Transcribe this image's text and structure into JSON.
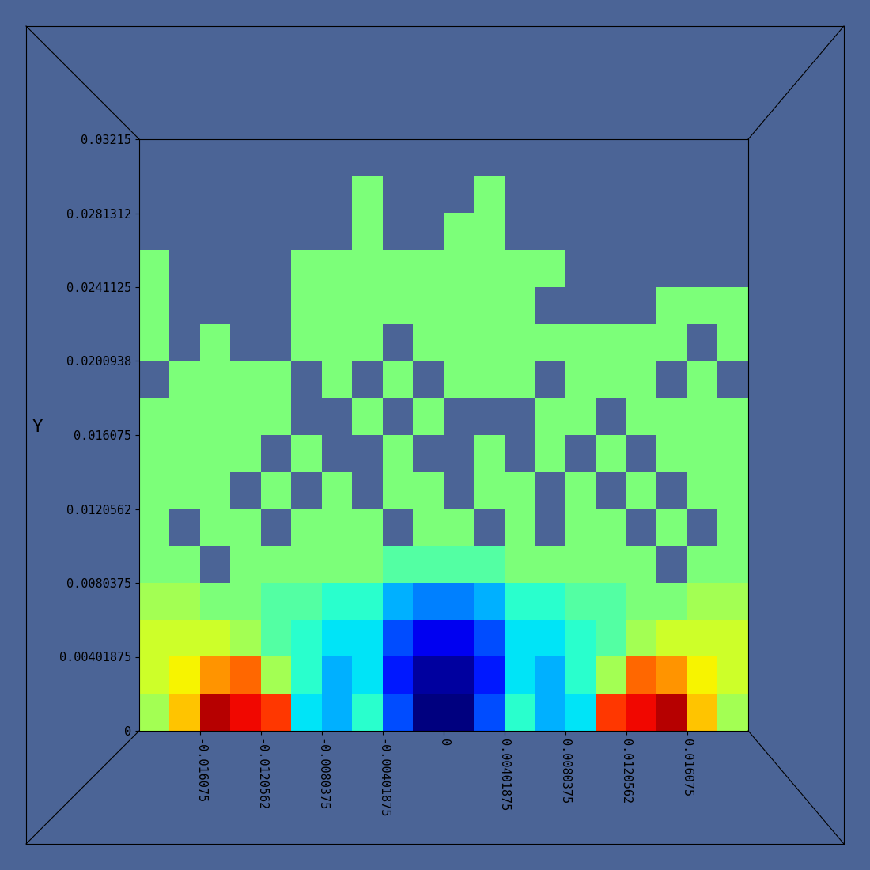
{
  "chart_data": {
    "type": "heatmap",
    "y_label": "Y",
    "xlim": [
      -0.0200938,
      0.0200938
    ],
    "ylim": [
      0,
      0.03215
    ],
    "xticks": [
      -0.016075,
      -0.0120562,
      -0.0080375,
      -0.00401875,
      0,
      0.00401875,
      0.0080375,
      0.0120562,
      0.016075
    ],
    "yticks": [
      0,
      0.00401875,
      0.0080375,
      0.0120562,
      0.016075,
      0.0200938,
      0.0241125,
      0.0281312,
      0.03215
    ],
    "color_range": [
      0,
      1
    ],
    "cells": [
      [
        null,
        null,
        null,
        null,
        null,
        null,
        null,
        null,
        null,
        null,
        null,
        null,
        null,
        null,
        null,
        null,
        null,
        null,
        null,
        null
      ],
      [
        null,
        null,
        null,
        null,
        null,
        null,
        null,
        0.5,
        null,
        null,
        null,
        0.5,
        null,
        null,
        null,
        null,
        null,
        null,
        null,
        null
      ],
      [
        null,
        null,
        null,
        null,
        null,
        null,
        null,
        0.5,
        null,
        null,
        0.5,
        0.5,
        null,
        null,
        null,
        null,
        null,
        null,
        null,
        null
      ],
      [
        0.5,
        null,
        null,
        null,
        null,
        0.5,
        0.5,
        0.5,
        0.5,
        0.5,
        0.5,
        0.5,
        0.5,
        0.5,
        null,
        null,
        null,
        null,
        null,
        null
      ],
      [
        0.5,
        null,
        null,
        null,
        null,
        0.5,
        0.5,
        0.5,
        0.5,
        0.5,
        0.5,
        0.5,
        0.5,
        null,
        null,
        null,
        null,
        0.5,
        0.5,
        0.5
      ],
      [
        0.5,
        null,
        0.5,
        null,
        null,
        0.5,
        0.5,
        0.5,
        null,
        0.5,
        0.5,
        0.5,
        0.5,
        0.5,
        0.5,
        0.5,
        0.5,
        0.5,
        null,
        0.5
      ],
      [
        null,
        0.5,
        0.5,
        0.5,
        0.5,
        null,
        0.5,
        null,
        0.5,
        null,
        0.5,
        0.5,
        0.5,
        null,
        0.5,
        0.5,
        0.5,
        null,
        0.5,
        null
      ],
      [
        0.5,
        0.5,
        0.5,
        0.5,
        0.5,
        null,
        null,
        0.5,
        null,
        0.5,
        null,
        null,
        null,
        0.5,
        0.5,
        null,
        0.5,
        0.5,
        0.5,
        0.5
      ],
      [
        0.5,
        0.5,
        0.5,
        0.5,
        null,
        0.5,
        null,
        null,
        0.5,
        null,
        null,
        0.5,
        null,
        0.5,
        null,
        0.5,
        null,
        0.5,
        0.5,
        0.5
      ],
      [
        0.5,
        0.5,
        0.5,
        null,
        0.5,
        null,
        0.5,
        null,
        0.5,
        0.5,
        null,
        0.5,
        0.5,
        null,
        0.5,
        null,
        0.5,
        null,
        0.5,
        0.5
      ],
      [
        0.5,
        null,
        0.5,
        0.5,
        null,
        0.5,
        0.5,
        0.5,
        null,
        0.5,
        0.5,
        null,
        0.5,
        null,
        0.5,
        0.5,
        null,
        0.5,
        null,
        0.5
      ],
      [
        0.5,
        0.5,
        null,
        0.5,
        0.5,
        0.5,
        0.5,
        0.5,
        0.45,
        0.45,
        0.45,
        0.45,
        0.5,
        0.5,
        0.5,
        0.5,
        0.5,
        null,
        0.5,
        0.5
      ],
      [
        0.55,
        0.55,
        0.5,
        0.5,
        0.45,
        0.45,
        0.4,
        0.4,
        0.3,
        0.25,
        0.25,
        0.3,
        0.4,
        0.4,
        0.45,
        0.45,
        0.5,
        0.5,
        0.55,
        0.55
      ],
      [
        0.6,
        0.6,
        0.6,
        0.55,
        0.45,
        0.4,
        0.35,
        0.35,
        0.2,
        0.1,
        0.1,
        0.2,
        0.35,
        0.35,
        0.4,
        0.45,
        0.55,
        0.6,
        0.6,
        0.6
      ],
      [
        0.6,
        0.65,
        0.75,
        0.8,
        0.55,
        0.4,
        0.3,
        0.35,
        0.15,
        0.03,
        0.03,
        0.15,
        0.35,
        0.3,
        0.4,
        0.55,
        0.8,
        0.75,
        0.65,
        0.6
      ],
      [
        0.55,
        0.7,
        0.95,
        0.9,
        0.85,
        0.35,
        0.3,
        0.4,
        0.2,
        0.0,
        0.0,
        0.2,
        0.4,
        0.3,
        0.35,
        0.85,
        0.9,
        0.95,
        0.7,
        0.55
      ]
    ]
  }
}
